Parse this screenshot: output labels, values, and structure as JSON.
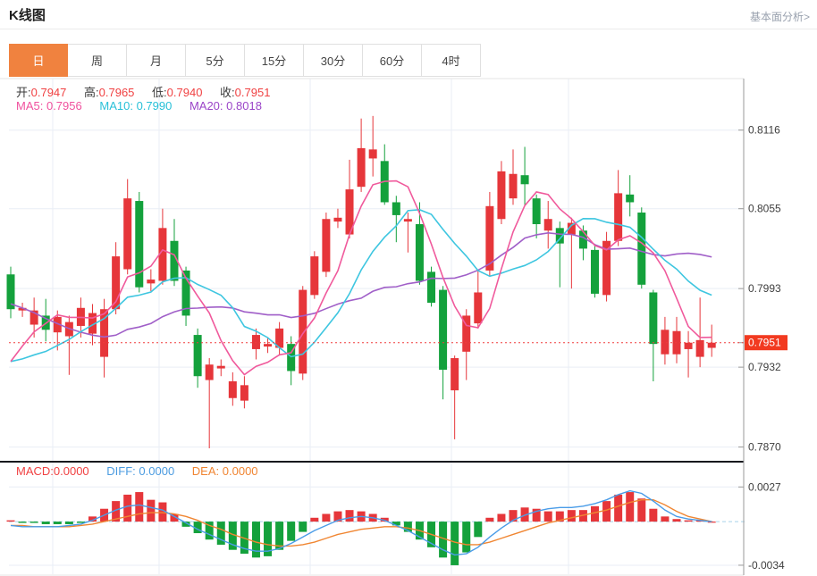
{
  "header": {
    "title": "K线图",
    "analysis_link": "基本面分析>"
  },
  "tabs": {
    "items": [
      "日",
      "周",
      "月",
      "5分",
      "15分",
      "30分",
      "60分",
      "4时"
    ],
    "active": "日"
  },
  "ohlc": {
    "open_label": "开:",
    "open": "0.7947",
    "high_label": "高:",
    "high": "0.7965",
    "low_label": "低:",
    "low": "0.7940",
    "close_label": "收:",
    "close": "0.7951"
  },
  "ma_legend": {
    "ma5_label": "MA5:",
    "ma5": "0.7956",
    "ma10_label": "MA10:",
    "ma10": "0.7990",
    "ma20_label": "MA20:",
    "ma20": "0.8018"
  },
  "macd_legend": {
    "macd_label": "MACD:",
    "macd": "0.0000",
    "diff_label": "DIFF:",
    "diff": "0.0000",
    "dea_label": "DEA:",
    "dea": "0.0000"
  },
  "chart_data": {
    "type": "candlestick+macd",
    "price_axis": {
      "labels": [
        "0.8116",
        "0.8055",
        "0.7993",
        "0.7951",
        "0.7932",
        "0.7870"
      ],
      "last_price_label": "0.7951",
      "range_top": 0.8156,
      "range_bottom": 0.786
    },
    "macd_axis": {
      "labels": [
        "0.0027",
        "-0.0034"
      ],
      "range_top": 0.0046,
      "range_bottom": -0.0041
    },
    "grid": {
      "vlines": [
        59,
        178,
        347,
        505,
        636
      ]
    },
    "candles_ohlc": [
      [
        0.8004,
        0.801,
        0.797,
        0.7977
      ],
      [
        0.7976,
        0.7982,
        0.7971,
        0.7978
      ],
      [
        0.7965,
        0.7986,
        0.7955,
        0.7976
      ],
      [
        0.7972,
        0.7985,
        0.7952,
        0.7961
      ],
      [
        0.7959,
        0.7976,
        0.7945,
        0.7971
      ],
      [
        0.7956,
        0.7972,
        0.7926,
        0.7967
      ],
      [
        0.7964,
        0.7986,
        0.7955,
        0.7978
      ],
      [
        0.7958,
        0.7981,
        0.7949,
        0.7974
      ],
      [
        0.794,
        0.7985,
        0.7924,
        0.7977
      ],
      [
        0.7977,
        0.8029,
        0.7973,
        0.8018
      ],
      [
        0.8008,
        0.8078,
        0.8004,
        0.8063
      ],
      [
        0.8061,
        0.8068,
        0.799,
        0.7994
      ],
      [
        0.7997,
        0.8008,
        0.7991,
        0.8
      ],
      [
        0.7999,
        0.8055,
        0.7996,
        0.804
      ],
      [
        0.803,
        0.8047,
        0.7995,
        0.7999
      ],
      [
        0.8007,
        0.801,
        0.7964,
        0.7972
      ],
      [
        0.7957,
        0.7962,
        0.7916,
        0.7925
      ],
      [
        0.7922,
        0.7939,
        0.7869,
        0.7934
      ],
      [
        0.7931,
        0.7938,
        0.7925,
        0.7933
      ],
      [
        0.7908,
        0.7928,
        0.7902,
        0.7921
      ],
      [
        0.7906,
        0.7925,
        0.79,
        0.7918
      ],
      [
        0.7946,
        0.7962,
        0.7938,
        0.7957
      ],
      [
        0.7948,
        0.7955,
        0.7943,
        0.795
      ],
      [
        0.7947,
        0.7967,
        0.7941,
        0.7962
      ],
      [
        0.795,
        0.7956,
        0.7918,
        0.7929
      ],
      [
        0.7927,
        0.7995,
        0.7922,
        0.7992
      ],
      [
        0.7988,
        0.8022,
        0.7985,
        0.8018
      ],
      [
        0.8006,
        0.8052,
        0.8002,
        0.8047
      ],
      [
        0.8045,
        0.8055,
        0.804,
        0.8048
      ],
      [
        0.8035,
        0.8093,
        0.8032,
        0.807
      ],
      [
        0.8072,
        0.8125,
        0.8068,
        0.8102
      ],
      [
        0.8094,
        0.8127,
        0.808,
        0.8101
      ],
      [
        0.8092,
        0.8105,
        0.8058,
        0.806
      ],
      [
        0.806,
        0.8065,
        0.8029,
        0.805
      ],
      [
        0.8045,
        0.8052,
        0.8021,
        0.8047
      ],
      [
        0.8043,
        0.806,
        0.7996,
        0.7999
      ],
      [
        0.8006,
        0.801,
        0.7979,
        0.7982
      ],
      [
        0.7992,
        0.7995,
        0.7907,
        0.793
      ],
      [
        0.7914,
        0.7941,
        0.7876,
        0.7939
      ],
      [
        0.7944,
        0.7977,
        0.7922,
        0.7972
      ],
      [
        0.7966,
        0.8008,
        0.7962,
        0.799
      ],
      [
        0.8007,
        0.8068,
        0.8003,
        0.8057
      ],
      [
        0.8047,
        0.8092,
        0.8043,
        0.8084
      ],
      [
        0.8063,
        0.8101,
        0.8058,
        0.8082
      ],
      [
        0.8081,
        0.8103,
        0.8058,
        0.8074
      ],
      [
        0.8063,
        0.8066,
        0.8032,
        0.8043
      ],
      [
        0.8038,
        0.8061,
        0.8024,
        0.8047
      ],
      [
        0.804,
        0.8045,
        0.7994,
        0.8028
      ],
      [
        0.8035,
        0.8048,
        0.7993,
        0.8044
      ],
      [
        0.8038,
        0.8042,
        0.8015,
        0.8024
      ],
      [
        0.8023,
        0.8026,
        0.7986,
        0.7989
      ],
      [
        0.7988,
        0.8037,
        0.7983,
        0.803
      ],
      [
        0.803,
        0.8085,
        0.8026,
        0.8067
      ],
      [
        0.8066,
        0.8081,
        0.8049,
        0.806
      ],
      [
        0.8052,
        0.8056,
        0.7993,
        0.7996
      ],
      [
        0.799,
        0.7992,
        0.7921,
        0.795
      ],
      [
        0.7942,
        0.7971,
        0.7934,
        0.7961
      ],
      [
        0.7942,
        0.7971,
        0.7935,
        0.796
      ],
      [
        0.7946,
        0.796,
        0.7924,
        0.7951
      ],
      [
        0.794,
        0.7986,
        0.7932,
        0.7953
      ],
      [
        0.7947,
        0.7965,
        0.794,
        0.7951
      ]
    ],
    "ma_seed_closes": [
      0.8042,
      0.8048,
      0.8052,
      0.805,
      0.8044,
      0.8034,
      0.802,
      0.8005,
      0.799,
      0.7973,
      0.7958,
      0.7945,
      0.7934,
      0.7925,
      0.792,
      0.7918,
      0.7921,
      0.7928,
      0.7938
    ],
    "macd": {
      "hist": [
        0.0001,
        -0.0001,
        -0.0001,
        -0.0002,
        -0.0002,
        -0.0002,
        -0.0001,
        0.0004,
        0.001,
        0.0016,
        0.0021,
        0.0023,
        0.0017,
        0.0015,
        0.0006,
        -0.0004,
        -0.0009,
        -0.0014,
        -0.0018,
        -0.0022,
        -0.0025,
        -0.0028,
        -0.0027,
        -0.0022,
        -0.0015,
        -0.0008,
        0.0003,
        0.0006,
        0.0008,
        0.0009,
        0.0008,
        0.0006,
        0.0003,
        -0.0003,
        -0.0008,
        -0.0014,
        -0.002,
        -0.0028,
        -0.0034,
        -0.0024,
        -0.0012,
        0.0003,
        0.0006,
        0.0009,
        0.0011,
        0.001,
        0.0008,
        0.0008,
        0.0009,
        0.0009,
        0.0012,
        0.0016,
        0.0021,
        0.0023,
        0.0018,
        0.001,
        0.0004,
        0.0002,
        0.0001,
        0.0001,
        0.0
      ],
      "diff": [
        -0.0003,
        -0.0004,
        -0.0004,
        -0.0004,
        -0.0004,
        -0.0003,
        -0.0002,
        0.0001,
        0.0005,
        0.0009,
        0.0012,
        0.0013,
        0.0011,
        0.0009,
        0.0004,
        -0.0001,
        -0.0006,
        -0.001,
        -0.0014,
        -0.0018,
        -0.0021,
        -0.0023,
        -0.0023,
        -0.0021,
        -0.0017,
        -0.0012,
        -0.0007,
        -0.0003,
        0.0001,
        0.0003,
        0.0004,
        0.0003,
        0.0001,
        -0.0003,
        -0.0007,
        -0.0012,
        -0.0017,
        -0.0022,
        -0.0026,
        -0.0025,
        -0.002,
        -0.0012,
        -0.0005,
        0.0001,
        0.0005,
        0.0008,
        0.001,
        0.0011,
        0.0011,
        0.0012,
        0.0014,
        0.0017,
        0.0021,
        0.0024,
        0.0022,
        0.0016,
        0.0009,
        0.0004,
        0.0002,
        0.0001,
        0.0
      ],
      "dea": [
        -0.0003,
        -0.0003,
        -0.0004,
        -0.0004,
        -0.0004,
        -0.0004,
        -0.0003,
        -0.0002,
        0.0,
        0.0002,
        0.0004,
        0.0006,
        0.0007,
        0.0007,
        0.0006,
        0.0004,
        0.0001,
        -0.0003,
        -0.0006,
        -0.001,
        -0.0013,
        -0.0016,
        -0.0018,
        -0.0019,
        -0.0019,
        -0.0018,
        -0.0016,
        -0.0013,
        -0.001,
        -0.0008,
        -0.0006,
        -0.0005,
        -0.0004,
        -0.0004,
        -0.0005,
        -0.0007,
        -0.001,
        -0.0013,
        -0.0016,
        -0.0018,
        -0.0018,
        -0.0016,
        -0.0013,
        -0.001,
        -0.0007,
        -0.0004,
        -0.0001,
        0.0001,
        0.0003,
        0.0005,
        0.0007,
        0.0009,
        0.0012,
        0.0015,
        0.0017,
        0.0017,
        0.0013,
        0.0008,
        0.0004,
        0.0002,
        0.0
      ]
    },
    "style": {
      "up": "#e6363a",
      "down": "#14a13c",
      "ma5": "#f05a9c",
      "ma10": "#3ec6e0",
      "ma20": "#a05fc8",
      "diff": "#4a9ce8",
      "dea": "#f08632",
      "grid": "#e9eef5",
      "axis": "#999999",
      "axis_text": "#3d3d3d",
      "dotted_line": "#f03c3c",
      "badge": "#f23a20",
      "badge_text": "#ffffff",
      "zero_line": "#a8d2ea",
      "divider": "#15181d",
      "border": "#e6e6e6",
      "tab_active": "#f0823f"
    }
  }
}
